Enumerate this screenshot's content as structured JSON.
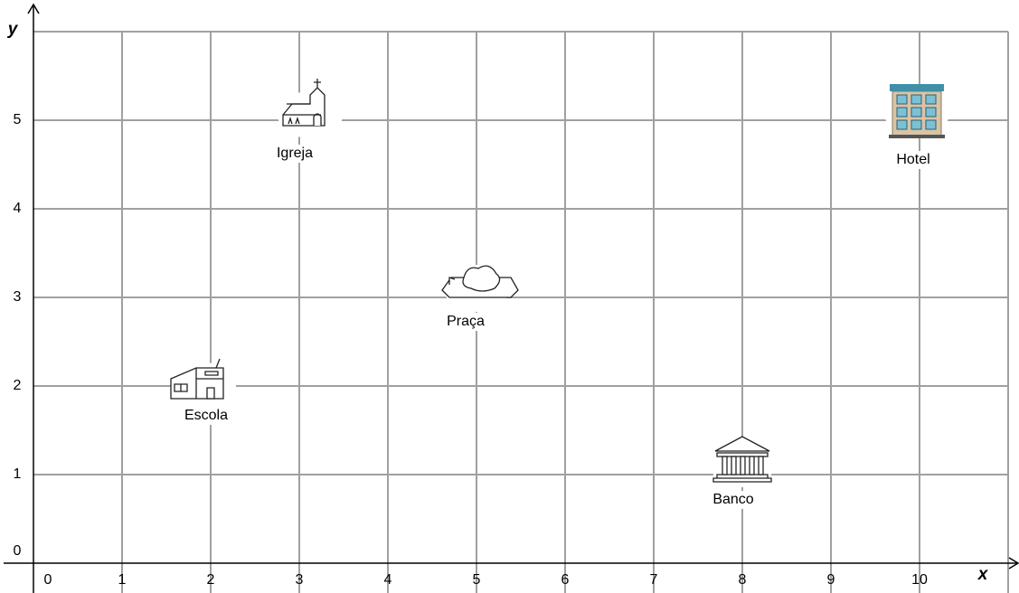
{
  "chart_data": {
    "type": "scatter",
    "x": [
      3,
      10,
      5,
      2,
      8
    ],
    "values": [
      5,
      5,
      3,
      2,
      1
    ],
    "labels": [
      "Igreja",
      "Hotel",
      "Praça",
      "Escola",
      "Banco"
    ],
    "xlim": [
      0,
      11
    ],
    "ylim": [
      0,
      6
    ],
    "xticks": [
      0,
      1,
      2,
      3,
      4,
      5,
      6,
      7,
      8,
      9,
      10
    ],
    "yticks": [
      0,
      1,
      2,
      3,
      4,
      5
    ],
    "xlabel": "x",
    "ylabel": "y",
    "grid": true
  }
}
